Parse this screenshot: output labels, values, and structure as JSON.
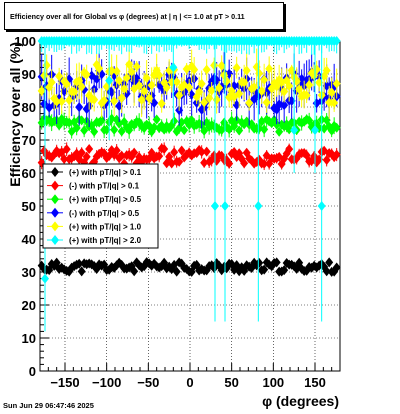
{
  "title": "Efficiency over all for Global vs φ (degrees) at |  η  | <= 1.0 at pT > 0.11",
  "datestamp": "Sun Jun 29 06:47:46 2025",
  "chart_data": {
    "type": "scatter",
    "title": "Efficiency over all for Global vs φ (degrees) at |  η  | <= 1.0 at pT > 0.11",
    "xlabel": "φ (degrees)",
    "ylabel": "Efficiency over all (%)",
    "xlim": [
      -180,
      180
    ],
    "ylim": [
      0,
      100
    ],
    "x_ticks": [
      -150,
      -100,
      -50,
      0,
      50,
      100,
      150
    ],
    "y_ticks": [
      0,
      10,
      20,
      30,
      40,
      50,
      60,
      70,
      80,
      90,
      100
    ],
    "x_tick_labels": [
      "−150",
      "−100",
      "−50",
      "0",
      "50",
      "100",
      "150"
    ],
    "y_tick_labels": [
      "0",
      "10",
      "20",
      "30",
      "40",
      "50",
      "60",
      "70",
      "80",
      "90",
      "100"
    ],
    "grid": true,
    "legend_position": "center-left",
    "series": [
      {
        "name": "(+) with pT/|q| > 0.1",
        "color": "#000000",
        "mean": 31.5,
        "spread": 1.5,
        "err": 0.5,
        "seed": 11
      },
      {
        "name": "(-) with pT/|q| > 0.1",
        "color": "#ff0000",
        "mean": 65.0,
        "spread": 2.5,
        "err": 1.5,
        "seed": 23
      },
      {
        "name": "(+) with pT/|q| > 0.5",
        "color": "#00ff00",
        "mean": 74.5,
        "spread": 2.0,
        "err": 2.0,
        "seed": 37
      },
      {
        "name": "(-) with pT/|q| > 0.5",
        "color": "#0000ff",
        "mean": 85.0,
        "spread": 6.0,
        "err": 5.0,
        "seed": 41
      },
      {
        "name": "(+) with pT/|q| > 1.0",
        "color": "#ffff00",
        "mean": 87.0,
        "spread": 6.0,
        "err": 4.0,
        "seed": 53
      },
      {
        "name": "(+) with pT/|q| > 2.0",
        "color": "#00ffff",
        "mean": 100.0,
        "spread": 0.0,
        "err": 3.0,
        "seed": 67,
        "outliers": [
          {
            "x": -174,
            "y": 28,
            "ylo": 12
          },
          {
            "x": 30,
            "y": 50,
            "ylo": 15
          },
          {
            "x": 42,
            "y": 50,
            "ylo": 15
          },
          {
            "x": 82,
            "y": 50,
            "ylo": 15
          },
          {
            "x": 158,
            "y": 50,
            "ylo": 15
          },
          {
            "x": 125,
            "y": 73,
            "ylo": 60
          },
          {
            "x": 150,
            "y": 73,
            "ylo": 60
          },
          {
            "x": -97,
            "y": 88,
            "ylo": 70
          },
          {
            "x": -20,
            "y": 92,
            "ylo": 75
          }
        ]
      }
    ]
  }
}
